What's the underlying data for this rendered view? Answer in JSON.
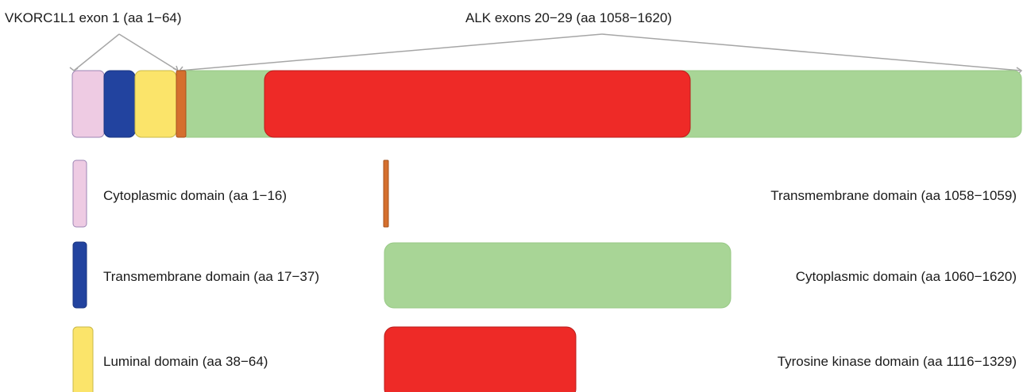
{
  "labels": {
    "vkorc_exon": "VKORC1L1 exon 1 (aa 1−64)",
    "alk_exons": "ALK exons 20−29 (aa 1058−1620)"
  },
  "legend": {
    "left": [
      {
        "label": "Cytoplasmic domain (aa 1−16)",
        "color": "#eecbe3"
      },
      {
        "label": "Transmembrane domain (aa 17−37)",
        "color": "#22439f"
      },
      {
        "label": "Luminal domain (aa 38−64)",
        "color": "#fbe46a"
      }
    ],
    "right": [
      {
        "label": "Transmembrane domain (aa 1058−1059)",
        "color": "#d56f2e"
      },
      {
        "label": "Cytoplasmic domain (aa 1060−1620)",
        "color": "#a8d596"
      },
      {
        "label": "Tyrosine kinase domain (aa 1116−1329)",
        "color": "#ee2a27"
      }
    ]
  },
  "colors": {
    "cyto_vk": "#eecbe3",
    "tm_vk": "#22439f",
    "luminal": "#fbe46a",
    "tm_alk": "#d56f2e",
    "cyto_alk": "#a8d596",
    "kinase": "#ee2a27",
    "bracket_line": "#a6a6a6"
  }
}
